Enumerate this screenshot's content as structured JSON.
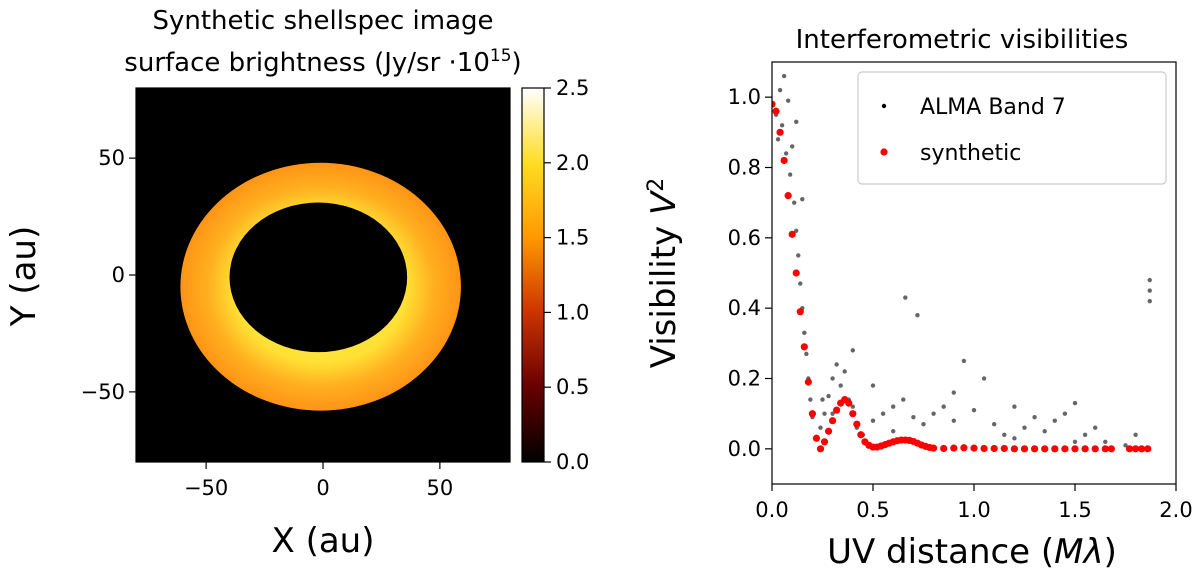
{
  "chart_data": [
    {
      "type": "heatmap",
      "title_line1": "Synthetic shellspec image",
      "title_line2_prefix": "surface brightness (Jy/sr ·10",
      "title_line2_exp": "15",
      "title_line2_suffix": ")",
      "xlabel": "X (au)",
      "ylabel": "Y (au)",
      "xlim": [
        -80,
        80
      ],
      "ylim": [
        -80,
        80
      ],
      "x_ticks": [
        -50,
        0,
        50
      ],
      "y_ticks": [
        -50,
        0,
        50
      ],
      "x_tick_labels": [
        "−50",
        "0",
        "50"
      ],
      "y_tick_labels": [
        "−50",
        "0",
        "50"
      ],
      "ring": {
        "outer": {
          "cx": -1,
          "cy": -5,
          "rx": 60,
          "ry": 53
        },
        "inner": {
          "cx": -2,
          "cy": -1,
          "rx": 38,
          "ry": 32
        },
        "inner_edge_value": 2.3,
        "outer_edge_value": 1.6,
        "background_value": 0.0
      },
      "colorbar": {
        "colormap": "afmhot",
        "range": [
          0,
          2.5
        ],
        "ticks": [
          0.0,
          0.5,
          1.0,
          1.5,
          2.0,
          2.5
        ],
        "tick_labels": [
          "0.0",
          "0.5",
          "1.0",
          "1.5",
          "2.0",
          "2.5"
        ]
      }
    },
    {
      "type": "scatter",
      "title": "Interferometric visibilities",
      "xlabel_prefix": "UV distance (",
      "xlabel_var": "Mλ",
      "xlabel_suffix": ")",
      "ylabel_prefix": "Visibility ",
      "ylabel_var": "V",
      "ylabel_exp": "2",
      "xlim": [
        0,
        2.0
      ],
      "ylim": [
        -0.1,
        1.1
      ],
      "x_ticks": [
        0.0,
        0.5,
        1.0,
        1.5,
        2.0
      ],
      "x_tick_labels": [
        "0.0",
        "0.5",
        "1.0",
        "1.5",
        "2.0"
      ],
      "y_ticks": [
        0.0,
        0.2,
        0.4,
        0.6,
        0.8,
        1.0
      ],
      "y_tick_labels": [
        "0.0",
        "0.2",
        "0.4",
        "0.6",
        "0.8",
        "1.0"
      ],
      "legend_position": "top-right",
      "series": [
        {
          "name": "ALMA Band 7",
          "color": "#000000",
          "marker": "small dot",
          "points": [
            [
              0.02,
              0.95
            ],
            [
              0.03,
              0.88
            ],
            [
              0.04,
              1.02
            ],
            [
              0.05,
              0.92
            ],
            [
              0.06,
              1.06
            ],
            [
              0.07,
              0.84
            ],
            [
              0.08,
              0.99
            ],
            [
              0.09,
              0.78
            ],
            [
              0.1,
              0.86
            ],
            [
              0.11,
              0.7
            ],
            [
              0.12,
              0.62
            ],
            [
              0.13,
              0.55
            ],
            [
              0.14,
              0.47
            ],
            [
              0.15,
              0.4
            ],
            [
              0.16,
              0.33
            ],
            [
              0.17,
              0.27
            ],
            [
              0.18,
              0.2
            ],
            [
              0.19,
              0.14
            ],
            [
              0.2,
              0.09
            ],
            [
              0.22,
              0.03
            ],
            [
              0.24,
              0.06
            ],
            [
              0.26,
              0.1
            ],
            [
              0.28,
              0.15
            ],
            [
              0.3,
              0.2
            ],
            [
              0.32,
              0.24
            ],
            [
              0.34,
              0.18
            ],
            [
              0.36,
              0.22
            ],
            [
              0.38,
              0.14
            ],
            [
              0.4,
              0.12
            ],
            [
              0.42,
              0.06
            ],
            [
              0.45,
              0.04
            ],
            [
              0.5,
              0.08
            ],
            [
              0.55,
              0.1
            ],
            [
              0.6,
              0.12
            ],
            [
              0.65,
              0.14
            ],
            [
              0.66,
              0.43
            ],
            [
              0.7,
              0.09
            ],
            [
              0.72,
              0.38
            ],
            [
              0.75,
              0.07
            ],
            [
              0.8,
              0.1
            ],
            [
              0.85,
              0.12
            ],
            [
              0.9,
              0.08
            ],
            [
              0.95,
              0.25
            ],
            [
              1.0,
              0.11
            ],
            [
              1.05,
              0.2
            ],
            [
              1.1,
              0.07
            ],
            [
              1.15,
              0.04
            ],
            [
              1.2,
              0.12
            ],
            [
              1.25,
              0.06
            ],
            [
              1.3,
              0.09
            ],
            [
              1.35,
              0.05
            ],
            [
              1.4,
              0.08
            ],
            [
              1.45,
              0.1
            ],
            [
              1.5,
              0.13
            ],
            [
              1.55,
              0.04
            ],
            [
              1.6,
              0.06
            ],
            [
              1.65,
              0.02
            ],
            [
              1.75,
              0.01
            ],
            [
              1.8,
              0.04
            ],
            [
              1.87,
              0.48
            ],
            [
              1.87,
              0.45
            ],
            [
              1.87,
              0.42
            ],
            [
              0.12,
              0.93
            ],
            [
              0.15,
              0.71
            ],
            [
              0.25,
              0.14
            ],
            [
              0.3,
              0.1
            ],
            [
              0.4,
              0.28
            ],
            [
              0.5,
              0.18
            ],
            [
              0.6,
              0.05
            ],
            [
              0.9,
              0.16
            ],
            [
              1.2,
              0.03
            ],
            [
              1.5,
              0.02
            ]
          ]
        },
        {
          "name": "synthetic",
          "color": "#ff0000",
          "marker": "dot",
          "curve": [
            [
              0.0,
              0.98
            ],
            [
              0.02,
              0.96
            ],
            [
              0.04,
              0.9
            ],
            [
              0.06,
              0.82
            ],
            [
              0.08,
              0.72
            ],
            [
              0.1,
              0.61
            ],
            [
              0.12,
              0.5
            ],
            [
              0.14,
              0.39
            ],
            [
              0.16,
              0.29
            ],
            [
              0.18,
              0.19
            ],
            [
              0.2,
              0.1
            ],
            [
              0.22,
              0.03
            ],
            [
              0.24,
              0.0
            ],
            [
              0.26,
              0.02
            ],
            [
              0.28,
              0.05
            ],
            [
              0.3,
              0.08
            ],
            [
              0.32,
              0.11
            ],
            [
              0.34,
              0.13
            ],
            [
              0.36,
              0.14
            ],
            [
              0.38,
              0.13
            ],
            [
              0.4,
              0.1
            ],
            [
              0.42,
              0.07
            ],
            [
              0.44,
              0.04
            ],
            [
              0.46,
              0.02
            ],
            [
              0.48,
              0.01
            ],
            [
              0.5,
              0.005
            ],
            [
              0.52,
              0.005
            ],
            [
              0.54,
              0.008
            ],
            [
              0.56,
              0.012
            ],
            [
              0.58,
              0.016
            ],
            [
              0.6,
              0.02
            ],
            [
              0.62,
              0.023
            ],
            [
              0.64,
              0.025
            ],
            [
              0.66,
              0.025
            ],
            [
              0.68,
              0.024
            ],
            [
              0.7,
              0.021
            ],
            [
              0.72,
              0.016
            ],
            [
              0.74,
              0.011
            ],
            [
              0.76,
              0.007
            ],
            [
              0.78,
              0.004
            ],
            [
              0.8,
              0.002
            ],
            [
              0.85,
              0.001
            ],
            [
              0.9,
              0.002
            ],
            [
              0.95,
              0.003
            ],
            [
              1.0,
              0.002
            ],
            [
              1.05,
              0.001
            ],
            [
              1.1,
              0.001
            ],
            [
              1.15,
              0.001
            ],
            [
              1.2,
              0.0
            ],
            [
              1.25,
              0.0
            ],
            [
              1.3,
              0.0
            ],
            [
              1.35,
              0.0
            ],
            [
              1.4,
              0.0
            ],
            [
              1.45,
              0.0
            ],
            [
              1.5,
              0.0
            ],
            [
              1.55,
              0.0
            ],
            [
              1.6,
              0.0
            ],
            [
              1.65,
              0.0
            ],
            [
              1.68,
              0.0
            ],
            [
              1.77,
              0.0
            ],
            [
              1.8,
              0.0
            ],
            [
              1.83,
              0.0
            ],
            [
              1.86,
              0.0
            ]
          ]
        }
      ]
    }
  ]
}
